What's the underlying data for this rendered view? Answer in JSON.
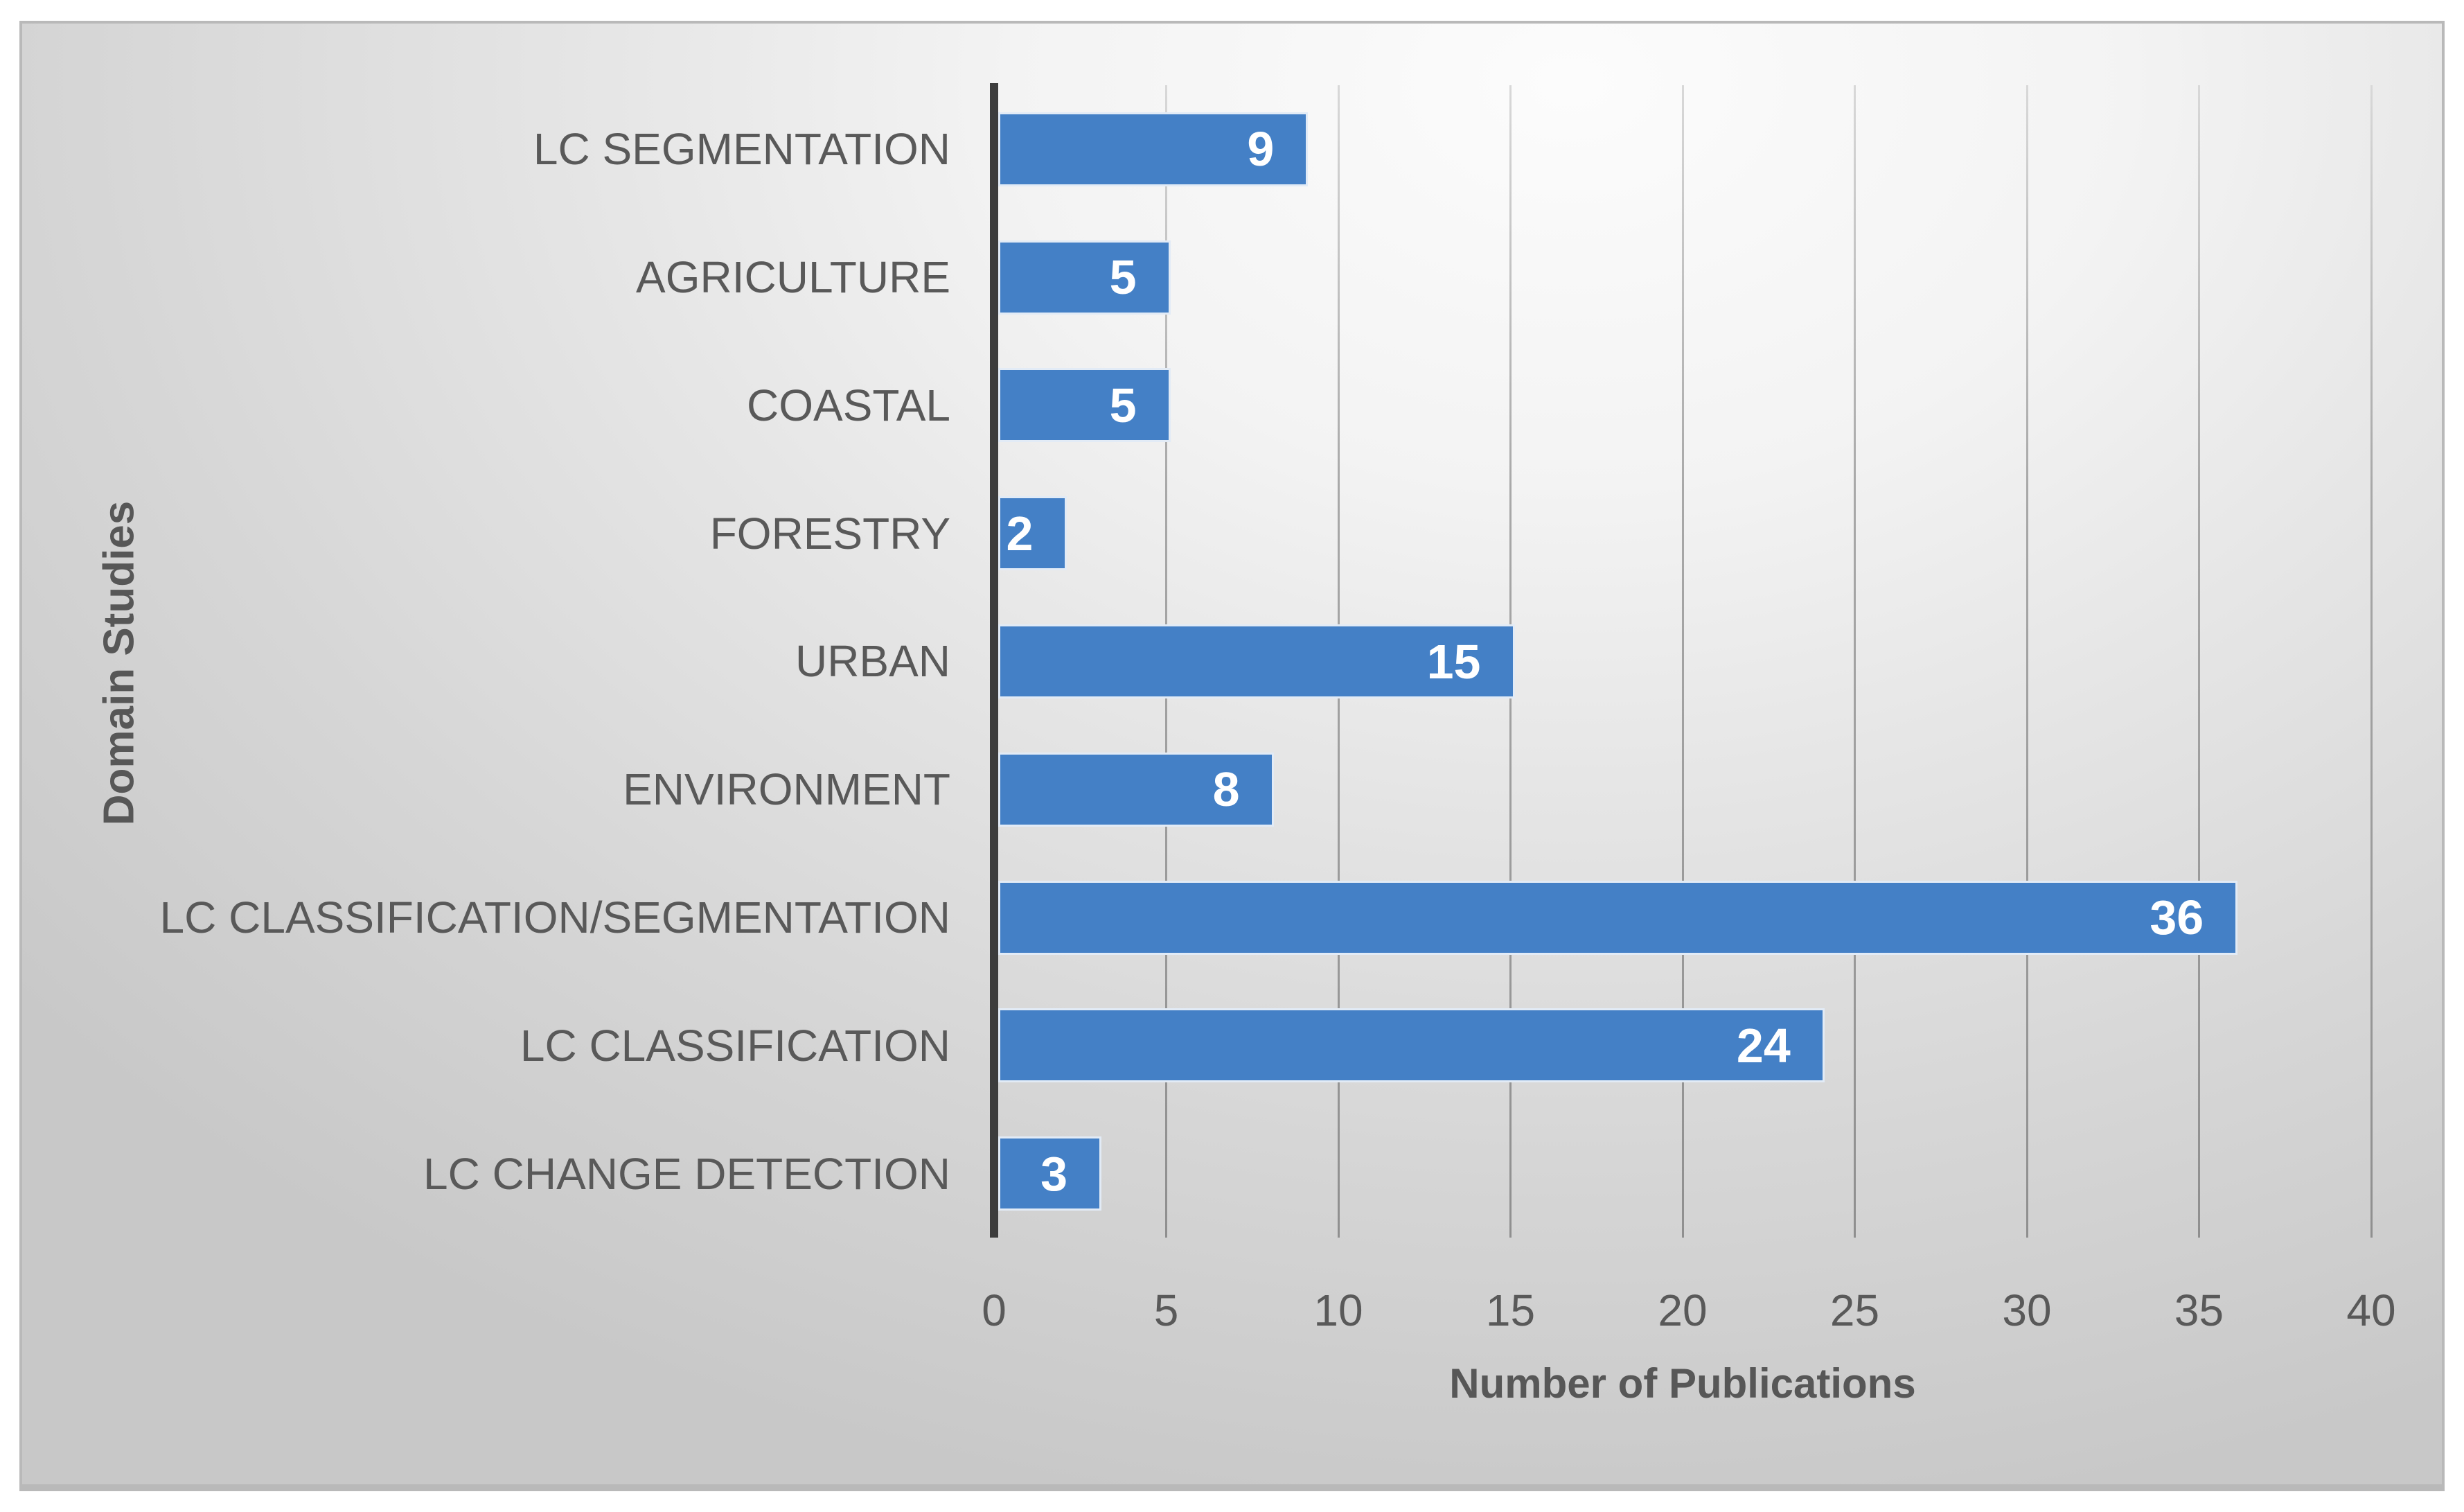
{
  "chart_data": {
    "type": "bar",
    "orientation": "horizontal",
    "title": "",
    "xlabel": "Number of Publications",
    "ylabel": "Domain Studies",
    "categories": [
      "LC SEGMENTATION",
      "AGRICULTURE",
      "COASTAL",
      "FORESTRY",
      "URBAN",
      "ENVIRONMENT",
      "LC CLASSIFICATION/SEGMENTATION",
      "LC CLASSIFICATION",
      "LC CHANGE DETECTION"
    ],
    "values": [
      9,
      5,
      5,
      2,
      15,
      8,
      36,
      24,
      3
    ],
    "xlim": [
      0,
      40
    ],
    "xticks": [
      0,
      5,
      10,
      15,
      20,
      25,
      30,
      35,
      40
    ],
    "grid": true,
    "data_labels": true,
    "legend": "none",
    "colors": {
      "bar_fill": "#4480C6",
      "bar_border": "#E2EBF6",
      "value_label": "#FFFFFF",
      "axis_text": "#595959",
      "grid_line": "#A0A0A0",
      "axis_line": "#3C3C3C",
      "frame_border": "#B9B9B9"
    }
  }
}
